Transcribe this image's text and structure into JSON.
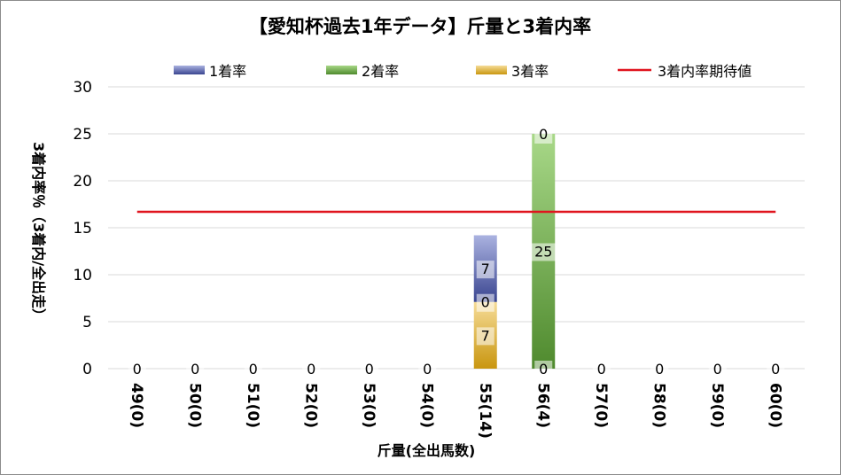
{
  "chart_data": {
    "type": "bar",
    "title": "【愛知杯過去1年データ】斤量と3着内率",
    "xlabel": "斤量(全出馬数)",
    "ylabel": "3着内率％（3着内/全出走）",
    "ylim": [
      0,
      30
    ],
    "yticks": [
      "0",
      "5",
      "10",
      "15",
      "20",
      "25",
      "30"
    ],
    "grid": true,
    "legend_position": "top",
    "categories": [
      "49(0)",
      "50(0)",
      "51(0)",
      "52(0)",
      "53(0)",
      "54(0)",
      "55(14)",
      "56(4)",
      "57(0)",
      "58(0)",
      "59(0)",
      "60(0)"
    ],
    "series": [
      {
        "name": "1着率",
        "color": "#3a4590",
        "values": [
          0,
          0,
          0,
          0,
          0,
          0,
          7.1,
          0,
          0,
          0,
          0,
          0
        ]
      },
      {
        "name": "2着率",
        "color": "#4f8a2e",
        "values": [
          0,
          0,
          0,
          0,
          0,
          0,
          0,
          25,
          0,
          0,
          0,
          0
        ]
      },
      {
        "name": "3着率",
        "color": "#c9960f",
        "values": [
          0,
          0,
          0,
          0,
          0,
          0,
          7.1,
          0,
          0,
          0,
          0,
          0
        ]
      }
    ],
    "reference_line": {
      "name": "3着内率期待値",
      "color": "#e0141e",
      "value": 16.7
    },
    "data_labels": [
      {
        "category": "49(0)",
        "labels": [
          "0"
        ]
      },
      {
        "category": "50(0)",
        "labels": [
          "0"
        ]
      },
      {
        "category": "51(0)",
        "labels": [
          "0"
        ]
      },
      {
        "category": "52(0)",
        "labels": [
          "0"
        ]
      },
      {
        "category": "53(0)",
        "labels": [
          "0"
        ]
      },
      {
        "category": "54(0)",
        "labels": [
          "0"
        ]
      },
      {
        "category": "55(14)",
        "labels": [
          "7",
          "0",
          "7"
        ]
      },
      {
        "category": "56(4)",
        "labels": [
          "0",
          "25",
          "0"
        ]
      },
      {
        "category": "57(0)",
        "labels": [
          "0"
        ]
      },
      {
        "category": "58(0)",
        "labels": [
          "0"
        ]
      },
      {
        "category": "59(0)",
        "labels": [
          "0"
        ]
      },
      {
        "category": "60(0)",
        "labels": [
          "0"
        ]
      }
    ]
  }
}
